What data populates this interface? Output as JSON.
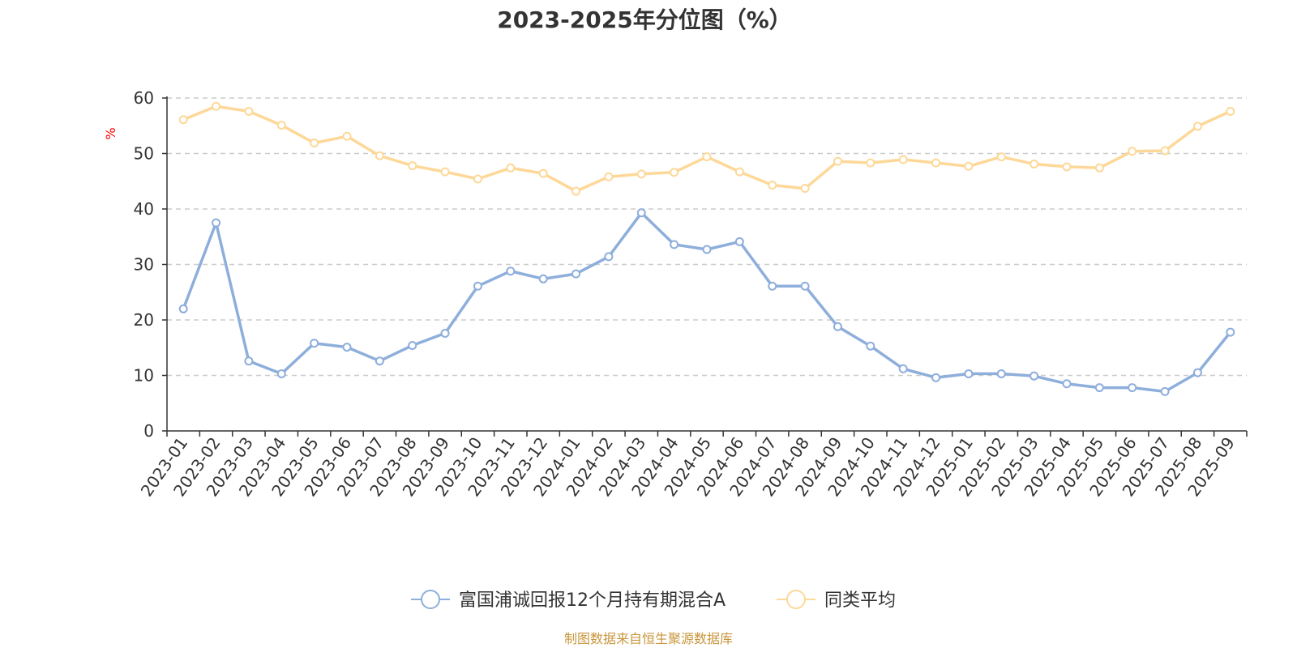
{
  "chart_data": {
    "type": "line",
    "title": "2023-2025年分位图（%）",
    "xlabel": "",
    "ylabel": "%",
    "ylim": [
      0,
      60
    ],
    "yticks": [
      0,
      10,
      20,
      30,
      40,
      50,
      60
    ],
    "grid": true,
    "legend_position": "bottom",
    "categories": [
      "2023-01",
      "2023-02",
      "2023-03",
      "2023-04",
      "2023-05",
      "2023-06",
      "2023-07",
      "2023-08",
      "2023-09",
      "2023-10",
      "2023-11",
      "2023-12",
      "2024-01",
      "2024-02",
      "2024-03",
      "2024-04",
      "2024-05",
      "2024-06",
      "2024-07",
      "2024-08",
      "2024-09",
      "2024-10",
      "2024-11",
      "2024-12",
      "2025-01",
      "2025-02",
      "2025-03",
      "2025-04",
      "2025-05",
      "2025-06",
      "2025-07",
      "2025-08",
      "2025-09"
    ],
    "series": [
      {
        "name": "富国浦诚回报12个月持有期混合A",
        "color": "#8eaedb",
        "values": [
          22,
          37.5,
          12.6,
          10.3,
          15.8,
          15.1,
          12.6,
          15.4,
          17.6,
          26.1,
          28.8,
          27.4,
          28.3,
          31.4,
          39.3,
          33.6,
          32.7,
          34.1,
          26.1,
          26.1,
          18.8,
          15.3,
          11.2,
          9.6,
          10.3,
          10.3,
          9.9,
          8.5,
          7.8,
          7.8,
          7.1,
          10.5,
          17.8
        ]
      },
      {
        "name": "同类平均",
        "color": "#fdd898",
        "values": [
          56.1,
          58.5,
          57.6,
          55.1,
          51.9,
          53.1,
          49.6,
          47.8,
          46.7,
          45.4,
          47.4,
          46.4,
          43.2,
          45.8,
          46.3,
          46.6,
          49.4,
          46.7,
          44.3,
          43.7,
          48.6,
          48.3,
          48.9,
          48.3,
          47.7,
          49.4,
          48.1,
          47.6,
          47.4,
          50.4,
          50.5,
          54.9,
          57.6
        ]
      }
    ],
    "source": "制图数据来自恒生聚源数据库"
  }
}
